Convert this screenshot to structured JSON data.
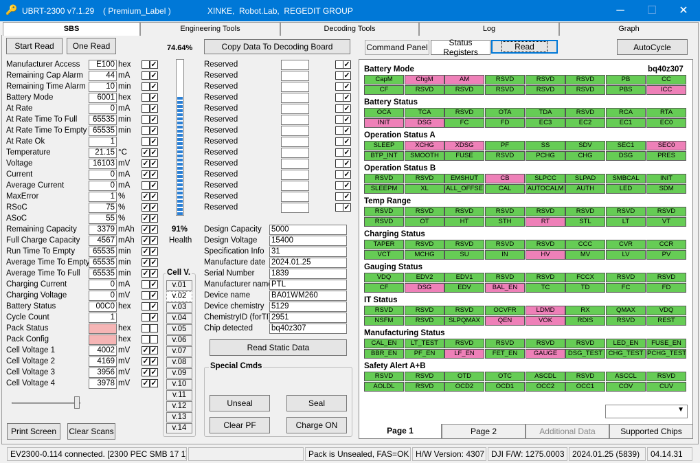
{
  "title": {
    "app": "UBRT-2300 v7.1.29",
    "label": "( Premium_Label )",
    "company": "XINKE,  Robot.Lab,  REGEDIT GROUP"
  },
  "window": {
    "min": "─",
    "max": "☐",
    "close": "✕"
  },
  "tabs": [
    "SBS",
    "Engineering Tools",
    "Decoding Tools",
    "Log",
    "Graph"
  ],
  "buttons": {
    "start_read": "Start Read",
    "one_read": "One Read",
    "copy": "Copy Data To Decoding Board",
    "command_panel": "Command Panel",
    "status_registers": "Status Registers",
    "read": "Read",
    "autocycle": "AutoCycle",
    "print": "Print Screen",
    "clear": "Clear Scans",
    "read_static": "Read Static Data",
    "unseal": "Unseal",
    "seal": "Seal",
    "clear_pf": "Clear PF",
    "charge_on": "Charge ON"
  },
  "soc_percent": "74.64%",
  "soc_level": 0.75,
  "health": {
    "value": "91%",
    "label": "Health"
  },
  "sbs": [
    {
      "name": "Manufacturer Access",
      "value": "E100",
      "unit": "hex",
      "c1": false,
      "c2": true
    },
    {
      "name": "Remaining Cap Alarm",
      "value": "44",
      "unit": "mA",
      "c1": false,
      "c2": true
    },
    {
      "name": "Remaining Time Alarm",
      "value": "10",
      "unit": "min",
      "c1": false,
      "c2": true
    },
    {
      "name": "Battery Mode",
      "value": "6001",
      "unit": "hex",
      "c1": false,
      "c2": true
    },
    {
      "name": "At Rate",
      "value": "0",
      "unit": "mA",
      "c1": false,
      "c2": true
    },
    {
      "name": "At Rate Time To Full",
      "value": "65535",
      "unit": "min",
      "c1": false,
      "c2": true
    },
    {
      "name": "At Rate Time To Empty",
      "value": "65535",
      "unit": "min",
      "c1": false,
      "c2": true
    },
    {
      "name": "At Rate Ok",
      "value": "1",
      "unit": "",
      "c1": false,
      "c2": true
    },
    {
      "name": "Temperature",
      "value": "21.15",
      "unit": "°C",
      "c1": true,
      "c2": true
    },
    {
      "name": "Voltage",
      "value": "16103",
      "unit": "mV",
      "c1": true,
      "c2": true
    },
    {
      "name": "Current",
      "value": "0",
      "unit": "mA",
      "c1": true,
      "c2": true
    },
    {
      "name": "Average Current",
      "value": "0",
      "unit": "mA",
      "c1": false,
      "c2": true
    },
    {
      "name": "MaxError",
      "value": "1",
      "unit": "%",
      "c1": true,
      "c2": true
    },
    {
      "name": "RSoC",
      "value": "75",
      "unit": "%",
      "c1": true,
      "c2": true
    },
    {
      "name": "ASoC",
      "value": "55",
      "unit": "%",
      "c1": true,
      "c2": true
    },
    {
      "name": "Remaining Capacity",
      "value": "3379",
      "unit": "mAh",
      "c1": true,
      "c2": true
    },
    {
      "name": "Full Charge Capacity",
      "value": "4567",
      "unit": "mAh",
      "c1": true,
      "c2": true
    },
    {
      "name": "Run Time To Empty",
      "value": "65535",
      "unit": "min",
      "c1": true,
      "c2": true
    },
    {
      "name": "Average Time To Empty",
      "value": "65535",
      "unit": "min",
      "c1": true,
      "c2": true
    },
    {
      "name": "Average Time To Full",
      "value": "65535",
      "unit": "min",
      "c1": true,
      "c2": true
    },
    {
      "name": "Charging Current",
      "value": "0",
      "unit": "mA",
      "c1": false,
      "c2": true
    },
    {
      "name": "Charging Voltage",
      "value": "0",
      "unit": "mV",
      "c1": false,
      "c2": true
    },
    {
      "name": "Battery Status",
      "value": "00C0",
      "unit": "hex",
      "c1": false,
      "c2": true
    },
    {
      "name": "Cycle Count",
      "value": "1",
      "unit": "",
      "c1": false,
      "c2": true
    },
    {
      "name": "Pack Status",
      "value": "",
      "unit": "hex",
      "c1": false,
      "c2": false,
      "pink": true
    },
    {
      "name": "Pack Config",
      "value": "",
      "unit": "hex",
      "c1": false,
      "c2": false,
      "pink": true
    },
    {
      "name": "Cell Voltage 1",
      "value": "4002",
      "unit": "mV",
      "c1": true,
      "c2": true
    },
    {
      "name": "Cell Voltage 2",
      "value": "4169",
      "unit": "mV",
      "c1": true,
      "c2": true
    },
    {
      "name": "Cell Voltage 3",
      "value": "3956",
      "unit": "mV",
      "c1": true,
      "c2": true
    },
    {
      "name": "Cell Voltage 4",
      "value": "3978",
      "unit": "mV",
      "c1": true,
      "c2": true
    }
  ],
  "reserved_label": "Reserved",
  "reserved_count": 14,
  "static": [
    {
      "name": "Design Capacity",
      "value": "5000"
    },
    {
      "name": "Design Voltage",
      "value": "15400"
    },
    {
      "name": "Specification Info",
      "value": "31"
    },
    {
      "name": "Manufacture date",
      "value": "2024.01.25"
    },
    {
      "name": "Serial Number",
      "value": "1839"
    },
    {
      "name": "Manufacturer name",
      "value": "PTL"
    },
    {
      "name": "Device name",
      "value": "BA01WM260"
    },
    {
      "name": "Device chemistry",
      "value": "5129"
    },
    {
      "name": "ChemistryID (forTI)",
      "value": "2951"
    },
    {
      "name": "Chip detected",
      "value": "bq40z307"
    }
  ],
  "cellv": {
    "title": "Cell V.",
    "items": [
      "v.01",
      "v.02",
      "v.03",
      "v.04",
      "v.05",
      "v.06",
      "v.07",
      "v.08",
      "v.09",
      "v.10",
      "v.11",
      "v.12",
      "v.13",
      "v.14"
    ]
  },
  "special_title": "Special Cmds",
  "chip": "bq40z307",
  "registers": [
    {
      "title": "Battery Mode",
      "rows": [
        [
          [
            "CapM",
            "g"
          ],
          [
            "ChgM",
            "p"
          ],
          [
            "AM",
            "p"
          ],
          [
            "RSVD",
            "g"
          ],
          [
            "RSVD",
            "g"
          ],
          [
            "RSVD",
            "g"
          ],
          [
            "PB",
            "g"
          ],
          [
            "CC",
            "g"
          ]
        ],
        [
          [
            "CF",
            "g"
          ],
          [
            "RSVD",
            "g"
          ],
          [
            "RSVD",
            "g"
          ],
          [
            "RSVD",
            "g"
          ],
          [
            "RSVD",
            "g"
          ],
          [
            "RSVD",
            "g"
          ],
          [
            "PBS",
            "g"
          ],
          [
            "ICC",
            "p"
          ]
        ]
      ]
    },
    {
      "title": "Battery Status",
      "rows": [
        [
          [
            "OCA",
            "g"
          ],
          [
            "TCA",
            "g"
          ],
          [
            "RSVD",
            "g"
          ],
          [
            "OTA",
            "g"
          ],
          [
            "TDA",
            "g"
          ],
          [
            "RSVD",
            "g"
          ],
          [
            "RCA",
            "g"
          ],
          [
            "RTA",
            "g"
          ]
        ],
        [
          [
            "INIT",
            "p"
          ],
          [
            "DSG",
            "p"
          ],
          [
            "FC",
            "g"
          ],
          [
            "FD",
            "g"
          ],
          [
            "EC3",
            "g"
          ],
          [
            "EC2",
            "g"
          ],
          [
            "EC1",
            "g"
          ],
          [
            "EC0",
            "g"
          ]
        ]
      ]
    },
    {
      "title": "Operation Status A",
      "rows": [
        [
          [
            "SLEEP",
            "g"
          ],
          [
            "XCHG",
            "p"
          ],
          [
            "XDSG",
            "p"
          ],
          [
            "PF",
            "g"
          ],
          [
            "SS",
            "g"
          ],
          [
            "SDV",
            "g"
          ],
          [
            "SEC1",
            "g"
          ],
          [
            "SEC0",
            "p"
          ]
        ],
        [
          [
            "BTP_INT",
            "g"
          ],
          [
            "SMOOTH",
            "g"
          ],
          [
            "FUSE",
            "g"
          ],
          [
            "RSVD",
            "g"
          ],
          [
            "PCHG",
            "g"
          ],
          [
            "CHG",
            "g"
          ],
          [
            "DSG",
            "g"
          ],
          [
            "PRES",
            "g"
          ]
        ]
      ]
    },
    {
      "title": "Operation Status B",
      "rows": [
        [
          [
            "RSVD",
            "g"
          ],
          [
            "RSVD",
            "g"
          ],
          [
            "EMSHUT",
            "g"
          ],
          [
            "CB",
            "p"
          ],
          [
            "SLPCC",
            "g"
          ],
          [
            "SLPAD",
            "g"
          ],
          [
            "SMBCAL",
            "g"
          ],
          [
            "INIT",
            "g"
          ]
        ],
        [
          [
            "SLEEPM",
            "g"
          ],
          [
            "XL",
            "g"
          ],
          [
            "ALL_OFFSE",
            "g"
          ],
          [
            "CAL",
            "g"
          ],
          [
            "AUTOCALM",
            "g"
          ],
          [
            "AUTH",
            "g"
          ],
          [
            "LED",
            "g"
          ],
          [
            "SDM",
            "g"
          ]
        ]
      ]
    },
    {
      "title": "Temp Range",
      "rows": [
        [
          [
            "RSVD",
            "g"
          ],
          [
            "RSVD",
            "g"
          ],
          [
            "RSVD",
            "g"
          ],
          [
            "RSVD",
            "g"
          ],
          [
            "RSVD",
            "g"
          ],
          [
            "RSVD",
            "g"
          ],
          [
            "RSVD",
            "g"
          ],
          [
            "RSVD",
            "g"
          ]
        ],
        [
          [
            "RSVD",
            "g"
          ],
          [
            "OT",
            "g"
          ],
          [
            "HT",
            "g"
          ],
          [
            "STH",
            "g"
          ],
          [
            "RT",
            "p"
          ],
          [
            "STL",
            "g"
          ],
          [
            "LT",
            "g"
          ],
          [
            "VT",
            "g"
          ]
        ]
      ]
    },
    {
      "title": "Charging Status",
      "rows": [
        [
          [
            "TAPER",
            "g"
          ],
          [
            "RSVD",
            "g"
          ],
          [
            "RSVD",
            "g"
          ],
          [
            "RSVD",
            "g"
          ],
          [
            "RSVD",
            "g"
          ],
          [
            "CCC",
            "g"
          ],
          [
            "CVR",
            "g"
          ],
          [
            "CCR",
            "g"
          ]
        ],
        [
          [
            "VCT",
            "g"
          ],
          [
            "MCHG",
            "g"
          ],
          [
            "SU",
            "g"
          ],
          [
            "IN",
            "g"
          ],
          [
            "HV",
            "p"
          ],
          [
            "MV",
            "g"
          ],
          [
            "LV",
            "g"
          ],
          [
            "PV",
            "g"
          ]
        ]
      ]
    },
    {
      "title": "Gauging Status",
      "rows": [
        [
          [
            "VDQ",
            "g"
          ],
          [
            "EDV2",
            "g"
          ],
          [
            "EDV1",
            "g"
          ],
          [
            "RSVD",
            "g"
          ],
          [
            "RSVD",
            "g"
          ],
          [
            "FCCX",
            "g"
          ],
          [
            "RSVD",
            "g"
          ],
          [
            "RSVD",
            "g"
          ]
        ],
        [
          [
            "CF",
            "g"
          ],
          [
            "DSG",
            "p"
          ],
          [
            "EDV",
            "g"
          ],
          [
            "BAL_EN",
            "p"
          ],
          [
            "TC",
            "g"
          ],
          [
            "TD",
            "g"
          ],
          [
            "FC",
            "g"
          ],
          [
            "FD",
            "g"
          ]
        ]
      ]
    },
    {
      "title": "IT Status",
      "rows": [
        [
          [
            "RSVD",
            "g"
          ],
          [
            "RSVD",
            "g"
          ],
          [
            "RSVD",
            "g"
          ],
          [
            "OCVFR",
            "g"
          ],
          [
            "LDMD",
            "p"
          ],
          [
            "RX",
            "g"
          ],
          [
            "QMAX",
            "g"
          ],
          [
            "VDQ",
            "g"
          ]
        ],
        [
          [
            "NSFM",
            "g"
          ],
          [
            "RSVD",
            "g"
          ],
          [
            "SLPQMAX",
            "g"
          ],
          [
            "QEN",
            "p"
          ],
          [
            "VOK",
            "p"
          ],
          [
            "RDIS",
            "g"
          ],
          [
            "RSVD",
            "g"
          ],
          [
            "REST",
            "g"
          ]
        ]
      ]
    },
    {
      "title": "Manufacturing Status",
      "rows": [
        [
          [
            "CAL_EN",
            "g"
          ],
          [
            "LT_TEST",
            "g"
          ],
          [
            "RSVD",
            "g"
          ],
          [
            "RSVD",
            "g"
          ],
          [
            "RSVD",
            "g"
          ],
          [
            "RSVD",
            "g"
          ],
          [
            "LED_EN",
            "g"
          ],
          [
            "FUSE_EN",
            "g"
          ]
        ],
        [
          [
            "BBR_EN",
            "g"
          ],
          [
            "PF_EN",
            "g"
          ],
          [
            "LF_EN",
            "p"
          ],
          [
            "FET_EN",
            "g"
          ],
          [
            "GAUGE",
            "p"
          ],
          [
            "DSG_TEST",
            "g"
          ],
          [
            "CHG_TEST",
            "g"
          ],
          [
            "PCHG_TEST",
            "g"
          ]
        ]
      ]
    },
    {
      "title": "Safety Alert A+B",
      "rows": [
        [
          [
            "RSVD",
            "g"
          ],
          [
            "RSVD",
            "g"
          ],
          [
            "OTD",
            "g"
          ],
          [
            "OTC",
            "g"
          ],
          [
            "ASCDL",
            "g"
          ],
          [
            "RSVD",
            "g"
          ],
          [
            "ASCCL",
            "g"
          ],
          [
            "RSVD",
            "g"
          ]
        ],
        [
          [
            "AOLDL",
            "g"
          ],
          [
            "RSVD",
            "g"
          ],
          [
            "OCD2",
            "g"
          ],
          [
            "OCD1",
            "g"
          ],
          [
            "OCC2",
            "g"
          ],
          [
            "OCC1",
            "g"
          ],
          [
            "COV",
            "g"
          ],
          [
            "CUV",
            "g"
          ]
        ]
      ]
    }
  ],
  "pages": [
    "Page 1",
    "Page 2",
    "Additional Data",
    "Supported Chips"
  ],
  "status": [
    "EV2300-0.114 connected. [2300  PEC  SMB  17 1]",
    "",
    "Pack is Unsealed, FAS=OK",
    "H/W Version: 4307",
    "DJI F/W: 1275.0003",
    "2024.01.25  (5839)",
    "04.14.31"
  ]
}
